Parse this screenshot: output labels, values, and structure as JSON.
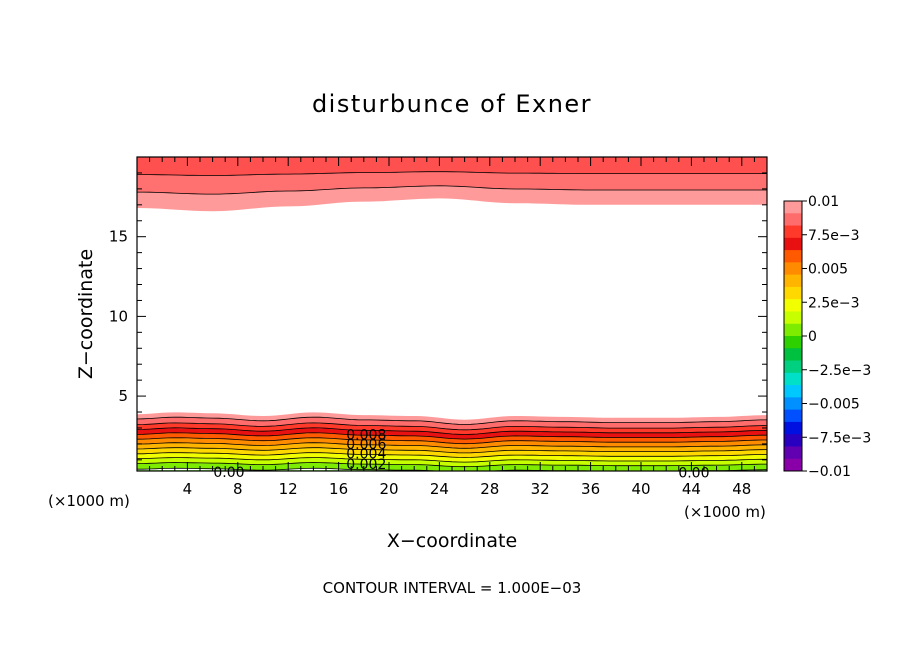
{
  "chart_data": {
    "type": "contour",
    "title": "disturbunce of Exner",
    "xlabel": "X−coordinate",
    "ylabel": "Z−coordinate",
    "x_unit_left": "(×1000 m)",
    "x_unit_right": "(×1000 m)",
    "footer": "CONTOUR INTERVAL = 1.000E−03",
    "xlim": [
      0,
      50
    ],
    "ylim": [
      0.3,
      20
    ],
    "x_ticks": [
      "4",
      "8",
      "12",
      "16",
      "20",
      "24",
      "28",
      "32",
      "36",
      "40",
      "44",
      "48"
    ],
    "x_tick_values": [
      4,
      8,
      12,
      16,
      20,
      24,
      28,
      32,
      36,
      40,
      44,
      48
    ],
    "y_ticks": [
      "5",
      "10",
      "15"
    ],
    "y_tick_values": [
      5,
      10,
      15
    ],
    "colorbar": {
      "min": -0.01,
      "max": 0.01,
      "labels": [
        "0.01",
        "7.5e−3",
        "0.005",
        "2.5e−3",
        "0",
        "−2.5e−3",
        "−0.005",
        "−7.5e−3",
        "−0.01"
      ],
      "label_values": [
        0.01,
        0.0075,
        0.005,
        0.0025,
        0,
        -0.0025,
        -0.005,
        -0.0075,
        -0.01
      ],
      "colors_top_to_bottom": [
        "#ff9a9a",
        "#ff6c6c",
        "#ff3a2a",
        "#e81010",
        "#ff5a00",
        "#ff8c00",
        "#ffb400",
        "#ffd800",
        "#f2ff00",
        "#c8ff00",
        "#7eec00",
        "#2ed000",
        "#00c040",
        "#00d080",
        "#00e0c8",
        "#00c8ff",
        "#0090ff",
        "#0050ff",
        "#0010e0",
        "#2a00c0",
        "#6000b0",
        "#8a00a8"
      ]
    },
    "lower_band": {
      "fill_levels": [
        0.0,
        0.001,
        0.002,
        0.003,
        0.004,
        0.005,
        0.006,
        0.007,
        0.008,
        0.009,
        0.01
      ],
      "fill_colors": [
        "#48dc00",
        "#7eec00",
        "#c8ff00",
        "#f2ff00",
        "#ffd800",
        "#ffb400",
        "#ff8c00",
        "#ff5a00",
        "#e81010",
        "#ff3a2a",
        "#ff6c6c",
        "#ff9a9a"
      ],
      "level_heights_km": [
        0.35,
        0.7,
        1.0,
        1.3,
        1.6,
        1.9,
        2.2,
        2.5,
        2.8,
        3.1,
        3.45,
        3.75
      ],
      "wave_x": [
        0,
        3,
        6,
        10,
        14,
        18,
        22,
        26,
        30,
        34,
        38,
        42,
        46,
        50
      ],
      "wave_offset_km": [
        0.1,
        0.2,
        0.15,
        0.0,
        0.2,
        0.05,
        0.0,
        -0.2,
        0.0,
        -0.05,
        -0.1,
        -0.1,
        -0.05,
        0.05
      ]
    },
    "upper_band": {
      "boundary_heights_km": [
        16.8,
        17.8,
        18.9
      ],
      "fill_colors": [
        "#ff9a9a",
        "#ff7070",
        "#ff5050"
      ],
      "wave_x": [
        0,
        6,
        12,
        18,
        24,
        30,
        36,
        42,
        50
      ],
      "wave_offset_km": [
        0.0,
        -0.2,
        0.1,
        0.4,
        0.6,
        0.3,
        0.2,
        0.2,
        0.2
      ]
    },
    "contour_labels": [
      {
        "text": "0.008",
        "x": 18.2,
        "y": 2.6
      },
      {
        "text": "0.006",
        "x": 18.2,
        "y": 2.0
      },
      {
        "text": "0.004",
        "x": 18.2,
        "y": 1.4
      },
      {
        "text": "0.002",
        "x": 18.2,
        "y": 0.75
      },
      {
        "text": "0.00",
        "x": 7.3,
        "y": 0.25
      },
      {
        "text": "0.00",
        "x": 44.2,
        "y": 0.2
      }
    ]
  }
}
